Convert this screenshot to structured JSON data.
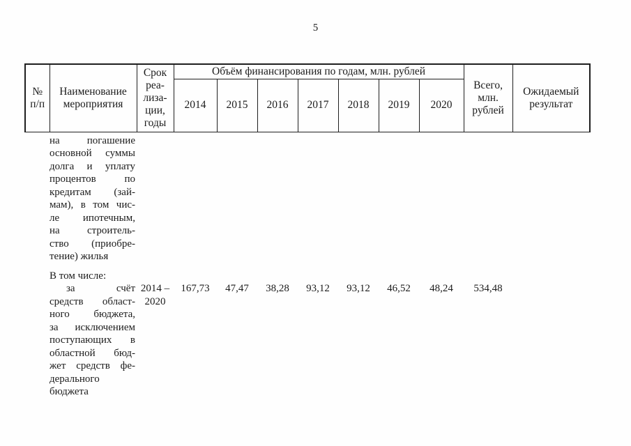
{
  "page": {
    "number": "5"
  },
  "table": {
    "header": {
      "num_lines": [
        "№",
        "п/п"
      ],
      "name_lines": [
        "Наименование",
        "мероприятия"
      ],
      "term_lines": [
        "Срок",
        "реа-",
        "лиза-",
        "ции,",
        "годы"
      ],
      "financing_span": "Объём финансирования по годам, млн. рублей",
      "years": [
        "2014",
        "2015",
        "2016",
        "2017",
        "2018",
        "2019",
        "2020"
      ],
      "total_lines": [
        "Всего,",
        "млн.",
        "рублей"
      ],
      "result_lines": [
        "Ожидаемый",
        "результат"
      ]
    },
    "rows": [
      {
        "name_lines": [
          "на погашение",
          "основной суммы",
          "долга и уплату",
          "процентов по",
          "кредитам (зай-",
          "мам), в том чис-",
          "ле ипотечным,",
          "на строитель-",
          "ство (приобре-",
          "тение) жилья"
        ]
      },
      {
        "label": "В том числе:"
      },
      {
        "name_lines": [
          "за счёт",
          "средств област-",
          "ного бюджета,",
          "за исключением",
          "поступающих в",
          "областной бюд-",
          "жет средств фе-",
          "дерального",
          "бюджета"
        ],
        "term_lines": [
          "2014 –",
          "2020"
        ],
        "values": [
          "167,73",
          "47,47",
          "38,28",
          "93,12",
          "93,12",
          "46,52",
          "48,24"
        ],
        "total": "534,48"
      }
    ]
  }
}
